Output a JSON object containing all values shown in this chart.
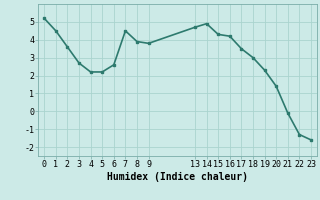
{
  "x": [
    0,
    1,
    2,
    3,
    4,
    5,
    6,
    7,
    8,
    9,
    13,
    14,
    15,
    16,
    17,
    18,
    19,
    20,
    21,
    22,
    23
  ],
  "y": [
    5.2,
    4.5,
    3.6,
    2.7,
    2.2,
    2.2,
    2.6,
    4.5,
    3.9,
    3.8,
    4.7,
    4.9,
    4.3,
    4.2,
    3.5,
    3.0,
    2.3,
    1.4,
    -0.1,
    -1.3,
    -1.6
  ],
  "line_color": "#2d7a6e",
  "marker": "s",
  "marker_size": 2,
  "bg_color": "#cceae7",
  "grid_color": "#aad4ce",
  "xlabel": "Humidex (Indice chaleur)",
  "xlabel_fontsize": 7,
  "ylim": [
    -2.5,
    6.0
  ],
  "yticks": [
    -2,
    -1,
    0,
    1,
    2,
    3,
    4,
    5
  ],
  "xticks": [
    0,
    1,
    2,
    3,
    4,
    5,
    6,
    7,
    8,
    9,
    13,
    14,
    15,
    16,
    17,
    18,
    19,
    20,
    21,
    22,
    23
  ],
  "xlim": [
    -0.5,
    23.5
  ],
  "tick_fontsize": 6,
  "linewidth": 1.2
}
